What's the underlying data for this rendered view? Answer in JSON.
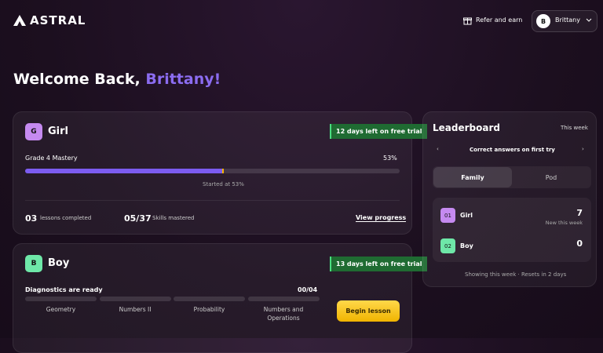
{
  "header": {
    "logo": "ASTRAL",
    "refer": "Refer and earn",
    "user_initial": "B",
    "user_name": "Brittany"
  },
  "welcome": {
    "prefix": "Welcome Back,",
    "name": "Brittany!"
  },
  "students": [
    {
      "initial": "G",
      "name": "Girl",
      "trial": "12 days left on free trial",
      "course": "Grade 4 Mastery",
      "progress": {
        "value": 53,
        "label": "53%"
      },
      "started": "Started at 53%",
      "lessons_count": "03",
      "lessons_label": "lessons completed",
      "skills_count": "05/37",
      "skills_label": "Skills mastered",
      "link": "View progress"
    },
    {
      "initial": "B",
      "name": "Boy",
      "trial": "13 days left on free trial",
      "diagnostics": "Diagnostics are ready",
      "count": "00/04",
      "topics": [
        "Geometry",
        "Numbers II",
        "Probability",
        "Numbers and Operations"
      ],
      "button": "Begin lesson"
    }
  ],
  "leaderboard": {
    "title": "Leaderboard",
    "period": "This week",
    "metric": "Correct answers on first try",
    "tabs": [
      "Family",
      "Pod"
    ],
    "rows": [
      {
        "rank": "01",
        "name": "Girl",
        "score": "7",
        "note": "New this week"
      },
      {
        "rank": "02",
        "name": "Boy",
        "score": "0"
      }
    ],
    "footer": "Showing this week · Resets in 2 days"
  }
}
